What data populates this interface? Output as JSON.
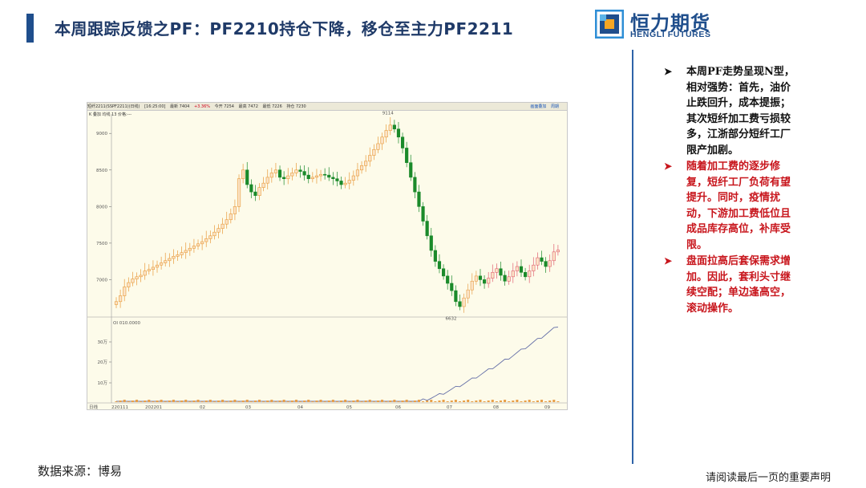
{
  "slide": {
    "title": "本周跟踪反馈之PF：PF2210持仓下降，移仓至主力PF2211",
    "logo_cn": "恒力期货",
    "logo_en": "HENGLI FUTURES",
    "source": "数据来源：博易",
    "disclaimer": "请阅读最后一页的重要声明"
  },
  "bullets": [
    {
      "text": "本周PF走势呈现N型，相对强势：首先，油价止跌回升，成本提振；其次短纤加工费亏损较多，江浙部分短纤工厂限产加剧。",
      "color": "#111111"
    },
    {
      "text": "随着加工费的逐步修复，短纤工厂负荷有望提升。同时，疫情扰动，下游加工费低位且成品库存高位，补库受限。",
      "color": "#c8161d"
    },
    {
      "text": "盘面拉高后套保需求增加。因此，套利头寸继续空配；单边逢高空，滚动操作。",
      "color": "#c8161d"
    }
  ],
  "chart_header": {
    "items": [
      "短纤2211(SSPF2211)(日线)",
      "[16:25:00]",
      "最新 7404",
      "+3.36%",
      "今开 7254",
      "最高 7472",
      "最低 7226",
      "持仓 7230"
    ],
    "right_items": [
      "画面叠加",
      "周期"
    ],
    "sub": "K 叠加 均线 13 价格:---"
  },
  "chart_data": {
    "type": "candlestick",
    "price_axis": {
      "min": 6500,
      "max": 9200,
      "ticks": [
        9000,
        8500,
        8000,
        7500,
        7000
      ]
    },
    "volume_axis": {
      "label": "OI 010.0000",
      "ticks": [
        "30万",
        "20万",
        "10万"
      ]
    },
    "x_labels": [
      "日线",
      "220111",
      "202201",
      "02",
      "03",
      "04",
      "05",
      "06",
      "07",
      "08",
      "09"
    ],
    "annotations": {
      "high": "9114",
      "low": "6632"
    },
    "closes": [
      6700,
      6780,
      6900,
      6960,
      7010,
      7040,
      7060,
      7120,
      7140,
      7170,
      7200,
      7230,
      7260,
      7290,
      7320,
      7340,
      7370,
      7400,
      7430,
      7460,
      7490,
      7520,
      7560,
      7600,
      7650,
      7700,
      7760,
      7820,
      7900,
      8000,
      8380,
      8500,
      8300,
      8200,
      8150,
      8260,
      8320,
      8400,
      8460,
      8500,
      8400,
      8380,
      8420,
      8460,
      8500,
      8480,
      8430,
      8380,
      8400,
      8420,
      8440,
      8430,
      8400,
      8380,
      8350,
      8300,
      8320,
      8360,
      8420,
      8500,
      8560,
      8620,
      8700,
      8780,
      8860,
      8950,
      9040,
      9114,
      9060,
      8950,
      8800,
      8600,
      8400,
      8200,
      8000,
      7800,
      7600,
      7400,
      7250,
      7150,
      7050,
      6950,
      6850,
      6700,
      6632,
      6750,
      6860,
      6980,
      7050,
      7000,
      6950,
      7020,
      7100,
      7150,
      7060,
      6980,
      7040,
      7120,
      7180,
      7100,
      7040,
      7120,
      7200,
      7300,
      7250,
      7180,
      7260,
      7380,
      7404
    ]
  }
}
